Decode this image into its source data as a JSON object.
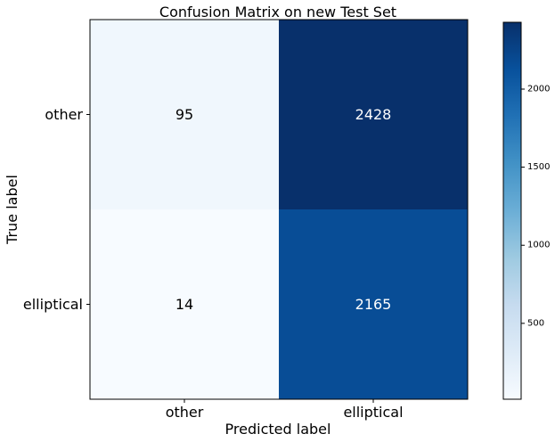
{
  "chart_data": {
    "type": "heatmap",
    "title": "Confusion Matrix on new Test Set",
    "xlabel": "Predicted label",
    "ylabel": "True label",
    "x_categories": [
      "other",
      "elliptical"
    ],
    "y_categories": [
      "other",
      "elliptical"
    ],
    "values": [
      [
        95,
        2428
      ],
      [
        14,
        2165
      ]
    ],
    "colormap": "Blues",
    "colorbar": {
      "range": [
        14,
        2428
      ],
      "ticks": [
        500,
        1000,
        1500,
        2000
      ],
      "tick_labels": [
        "500",
        "1000",
        "1500",
        "2000"
      ]
    },
    "grid": false
  }
}
